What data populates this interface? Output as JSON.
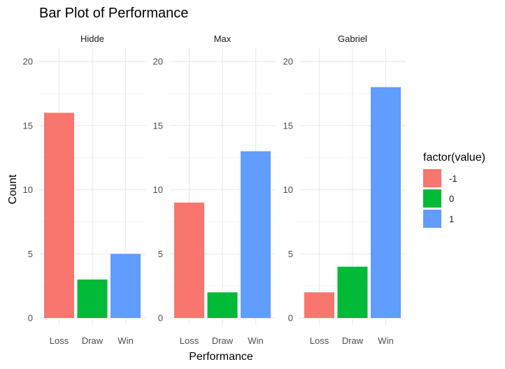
{
  "chart_data": {
    "type": "bar",
    "title": "Bar Plot of Performance",
    "xlabel": "Performance",
    "ylabel": "Count",
    "ylim": [
      0,
      20
    ],
    "yticks": [
      0,
      5,
      10,
      15,
      20
    ],
    "grid": true,
    "categories": [
      "Loss",
      "Draw",
      "Win"
    ],
    "fill_keys": [
      "-1",
      "0",
      "1"
    ],
    "panels": [
      {
        "name": "Hidde",
        "values": [
          16,
          3,
          5
        ]
      },
      {
        "name": "Max",
        "values": [
          9,
          2,
          13
        ]
      },
      {
        "name": "Gabriel",
        "values": [
          2,
          4,
          18
        ]
      }
    ],
    "legend": {
      "title": "factor(value)",
      "placement": "right",
      "entries": [
        {
          "label": "-1",
          "color": "#F8766D"
        },
        {
          "label": "0",
          "color": "#00BA38"
        },
        {
          "label": "1",
          "color": "#619CFF"
        }
      ]
    }
  }
}
